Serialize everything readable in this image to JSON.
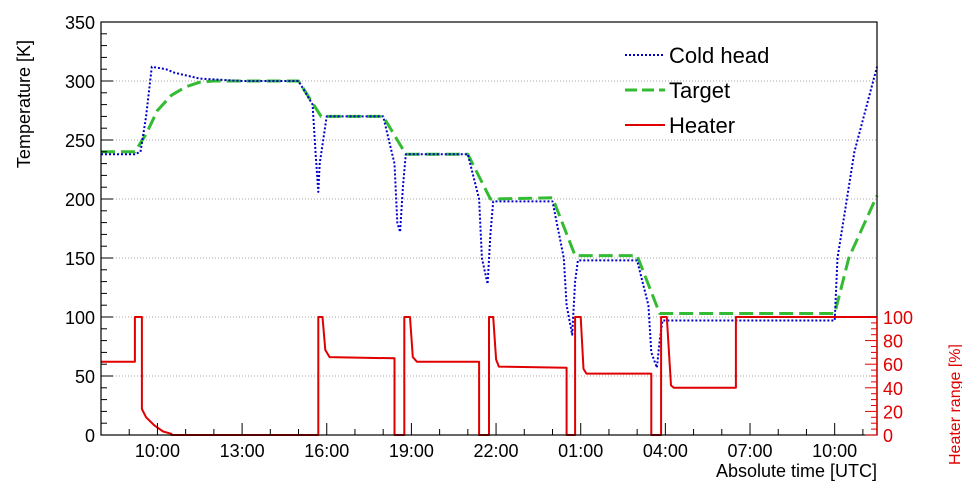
{
  "chart_data": {
    "type": "line",
    "title": "",
    "xlabel": "Absolute time [UTC]",
    "ylabel": "Temperature [K]",
    "y2label": "Heater range [%]",
    "x_unit": "hours elapsed from 08:00 UTC",
    "x_range": [
      0,
      27.5
    ],
    "ylim": [
      0,
      350
    ],
    "y2lim": [
      0,
      100
    ],
    "x_tick_labels": [
      "10:00",
      "13:00",
      "16:00",
      "19:00",
      "22:00",
      "01:00",
      "04:00",
      "07:00",
      "10:00"
    ],
    "x_ticks": [
      2,
      5,
      8,
      11,
      14,
      17,
      20,
      23,
      26
    ],
    "y_ticks": [
      0,
      50,
      100,
      150,
      200,
      250,
      300,
      350
    ],
    "y2_ticks": [
      0,
      20,
      40,
      60,
      80,
      100
    ],
    "grid": "horizontal-dotted",
    "legend_position": "top-right",
    "series": [
      {
        "name": "Cold head",
        "color": "#0000cc",
        "style": "dotted",
        "axis": "left",
        "x": [
          0,
          1.2,
          1.4,
          1.6,
          1.8,
          2.3,
          2.6,
          3.5,
          5.0,
          7.0,
          7.5,
          7.6,
          7.7,
          7.75,
          8.0,
          10.0,
          10.4,
          10.5,
          10.6,
          10.7,
          10.8,
          13.0,
          13.4,
          13.5,
          13.7,
          13.8,
          13.9,
          16.0,
          16.4,
          16.5,
          16.7,
          16.8,
          16.9,
          19.0,
          19.4,
          19.5,
          19.7,
          19.8,
          19.9,
          22.0,
          22.4,
          22.5,
          22.8,
          26.0,
          26.1,
          26.7,
          27.5
        ],
        "y": [
          238,
          238,
          240,
          270,
          312,
          310,
          307,
          302,
          300,
          300,
          280,
          240,
          206,
          230,
          270,
          270,
          230,
          180,
          172,
          210,
          238,
          238,
          200,
          150,
          128,
          170,
          198,
          198,
          150,
          110,
          85,
          130,
          148,
          148,
          110,
          70,
          57,
          80,
          97,
          97,
          97,
          97,
          97,
          97,
          150,
          240,
          312
        ]
      },
      {
        "name": "Target",
        "color": "#33bb33",
        "style": "dashed",
        "axis": "left",
        "x": [
          0,
          1.2,
          1.6,
          2.0,
          2.5,
          3.0,
          3.5,
          4.0,
          7.0,
          7.8,
          10.0,
          10.8,
          13.0,
          13.8,
          16.0,
          16.8,
          19.0,
          19.8,
          22.3,
          22.5,
          26.0,
          26.5,
          27.5
        ],
        "y": [
          240,
          240,
          255,
          275,
          288,
          295,
          299,
          300,
          300,
          270,
          270,
          238,
          238,
          200,
          201,
          152,
          152,
          103,
          103,
          103,
          103,
          150,
          203
        ]
      },
      {
        "name": "Heater",
        "color": "#e00000",
        "style": "solid",
        "axis": "right",
        "x": [
          0,
          1.2,
          1.2,
          1.45,
          1.45,
          1.6,
          1.9,
          2.2,
          2.5,
          2.5,
          7.7,
          7.7,
          7.85,
          7.95,
          8.1,
          10.4,
          10.4,
          10.75,
          10.75,
          10.95,
          11.05,
          11.2,
          13.4,
          13.4,
          13.75,
          13.75,
          13.9,
          14.0,
          14.1,
          16.5,
          16.5,
          16.8,
          16.8,
          17.0,
          17.1,
          17.2,
          19.5,
          19.5,
          19.85,
          19.85,
          20.05,
          20.2,
          20.3,
          22.5,
          22.5,
          27.5
        ],
        "y": [
          62,
          62,
          100,
          100,
          22,
          15,
          8,
          3,
          1,
          0,
          0,
          100,
          100,
          72,
          66,
          65,
          0,
          0,
          100,
          100,
          66,
          62,
          62,
          0,
          0,
          100,
          100,
          64,
          58,
          57,
          0,
          0,
          100,
          100,
          56,
          52,
          52,
          0,
          0,
          100,
          100,
          42,
          40,
          40,
          100,
          100
        ]
      }
    ]
  }
}
